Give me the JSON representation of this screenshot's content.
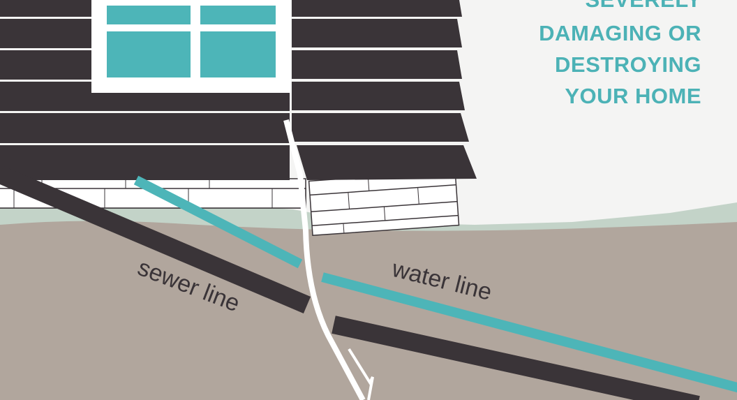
{
  "headline": {
    "lines": [
      "SEVERELY",
      "DAMAGING OR",
      "DESTROYING",
      "YOUR HOME"
    ]
  },
  "labels": {
    "sewer": "sewer line",
    "water": "water line"
  }
}
